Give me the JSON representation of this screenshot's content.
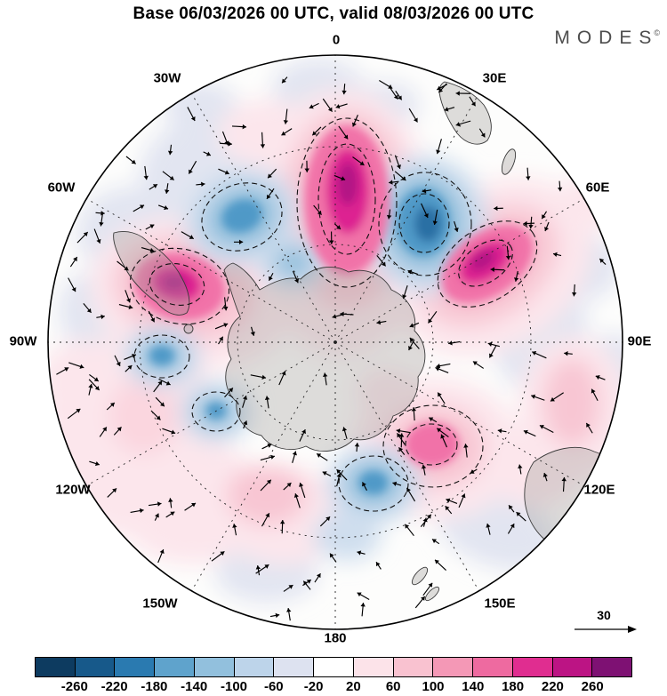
{
  "title": "Base 06/03/2026 00 UTC, valid 08/03/2026 00 UTC",
  "logo": {
    "text": "MODES",
    "mark": "©"
  },
  "map": {
    "projection": "south polar stereographic",
    "lon_labels": [
      "0",
      "30E",
      "60E",
      "90E",
      "120E",
      "150E",
      "180",
      "150W",
      "120W",
      "90W",
      "60W",
      "30W"
    ]
  },
  "reference_vector": {
    "label": "30"
  },
  "colorbar": {
    "tick_labels": [
      "-260",
      "-220",
      "-180",
      "-140",
      "-100",
      "-60",
      "-20",
      "20",
      "60",
      "100",
      "140",
      "180",
      "220",
      "260"
    ],
    "colors": [
      "#0d3b60",
      "#17598a",
      "#2a7ab0",
      "#5fa3cc",
      "#92c0dd",
      "#bdd4ea",
      "#dde2f0",
      "#ffffff",
      "#fce3e9",
      "#f9c2d0",
      "#f498b6",
      "#ee6aa0",
      "#e02d90",
      "#bc1484",
      "#7e1173"
    ]
  },
  "chart_data": {
    "type": "heatmap",
    "title": "Base 06/03/2026 00 UTC, valid 08/03/2026 00 UTC",
    "projection": "south polar stereographic (0 at top, 180 at bottom, outer ring ~30S)",
    "content": "filled anomaly contours with overlaid wind vector arrows and dashed/solid contour lines",
    "colorbar_levels": [
      -260,
      -220,
      -180,
      -140,
      -100,
      -60,
      -20,
      20,
      60,
      100,
      140,
      180,
      220,
      260
    ],
    "reference_vector": 30,
    "longitude_labels": [
      "0",
      "30E",
      "60E",
      "90E",
      "120E",
      "150E",
      "180",
      "150W",
      "120W",
      "90W",
      "60W",
      "30W"
    ],
    "anomaly_centers": [
      {
        "sign": "positive",
        "strength": "strong (>220)",
        "location": "near 5E, mid-latitudes (top center)"
      },
      {
        "sign": "positive",
        "strength": "strong (>220)",
        "location": "near 55E (upper right)"
      },
      {
        "sign": "positive",
        "strength": "strong (>220)",
        "location": "near 75W over southern South America (upper left)"
      },
      {
        "sign": "positive",
        "strength": "moderate (~100-140)",
        "location": "near 140E inner ring (lower right of pole)"
      },
      {
        "sign": "positive",
        "strength": "weak (~20-60)",
        "location": "broad areas 100W-150W and near 120E"
      },
      {
        "sign": "negative",
        "strength": "strong (<-180)",
        "location": "near 35E (between the two positive centers, upper right)"
      },
      {
        "sign": "negative",
        "strength": "moderate (~-100)",
        "location": "near 25W (upper left)"
      },
      {
        "sign": "negative",
        "strength": "moderate (~-100)",
        "location": "near 90W (left)"
      },
      {
        "sign": "negative",
        "strength": "moderate (~-100)",
        "location": "near 175E (bottom center)"
      },
      {
        "sign": "negative",
        "strength": "weak-moderate (~-60)",
        "location": "near 115W inner ring"
      }
    ]
  }
}
